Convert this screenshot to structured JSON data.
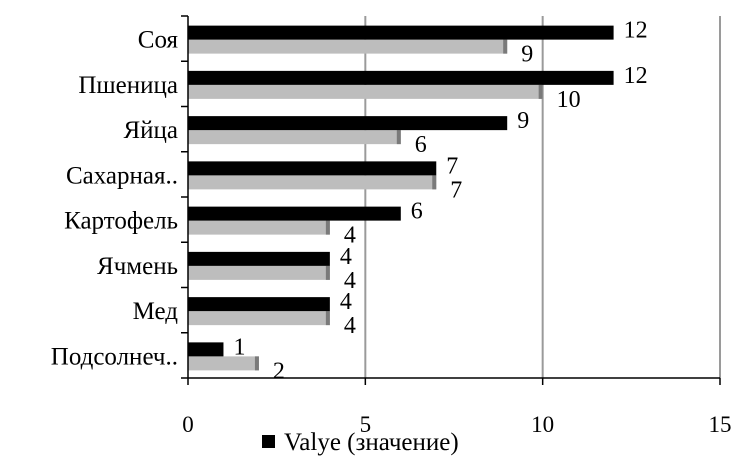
{
  "chart_data": {
    "type": "bar",
    "orientation": "horizontal",
    "categories": [
      "Соя",
      "Пшеница",
      "Яйца",
      "Сахарная..",
      "Картофель",
      "Ячмень",
      "Мед",
      "Подсолнеч.."
    ],
    "series": [
      {
        "name": "Valye (значение)",
        "values": [
          12,
          12,
          9,
          7,
          6,
          4,
          4,
          1
        ],
        "color": "#000000"
      },
      {
        "values": [
          9,
          10,
          6,
          7,
          4,
          4,
          4,
          2
        ],
        "color": "#bdbdbd"
      }
    ],
    "xlim": [
      0,
      15
    ],
    "xticks": [
      "0",
      "5",
      "10",
      "15"
    ],
    "grid": true,
    "legend": "bottom",
    "title": "",
    "xlabel": "",
    "ylabel": ""
  }
}
